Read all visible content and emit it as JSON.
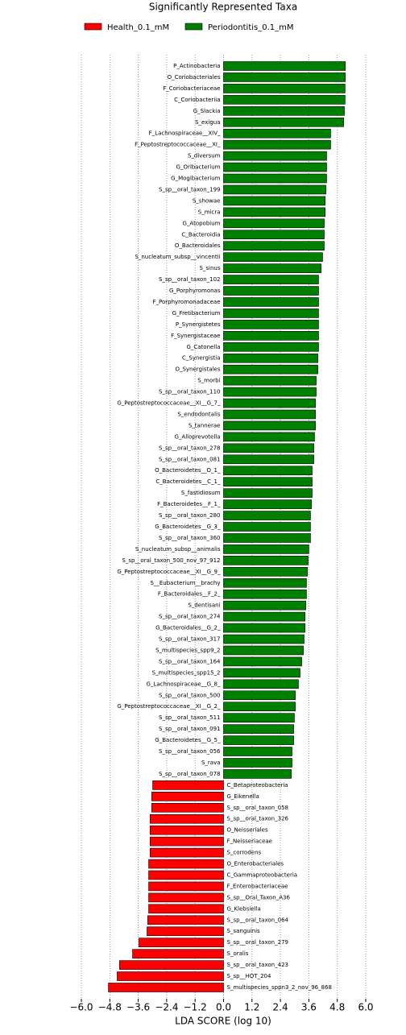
{
  "chart_data": {
    "type": "barh",
    "title": "Significantly Represented Taxa",
    "xlabel": "LDA SCORE (log 10)",
    "categories": [
      "P_Actinobacteria",
      "O_Coriobacteriales",
      "F_Coriobacteriaceae",
      "C_Coriobacteriia",
      "G_Slackia",
      "S_exigua",
      "F_Lachnospiraceae__XIV_",
      "F_Peptostreptococcaceae__XI_",
      "S_diversum",
      "G_Oribacterium",
      "G_Mogibacterium",
      "S_sp__oral_taxon_199",
      "S_showae",
      "S_micra",
      "G_Atopobium",
      "C_Bacteroidia",
      "O_Bacteroidales",
      "S_nucleatum_subsp__vincentii",
      "S_sinus",
      "S_sp__oral_taxon_102",
      "G_Porphyromonas",
      "F_Porphyromonadaceae",
      "G_Fretibacterium",
      "P_Synergistetes",
      "F_Synergistaceae",
      "G_Catonella",
      "C_Synergistia",
      "O_Synergistales",
      "S_morbi",
      "S_sp__oral_taxon_110",
      "G_Peptostreptococcaceae__XI__G_7_",
      "S_endodontalis",
      "S_tannerae",
      "G_Alloprevotella",
      "S_sp__oral_taxon_278",
      "S_sp__oral_taxon_081",
      "O_Bacteroidetes__O_1_",
      "C_Bacteroidetes__C_1_",
      "S_fastidiosum",
      "F_Bacteroidetes__F_1_",
      "S_sp__oral_taxon_280",
      "G_Bacteroidetes__G_3_",
      "S_sp__oral_taxon_360",
      "S_nucleatum_subsp__animalis",
      "S_sp__oral_taxon_500_nov_97_912",
      "G_Peptostreptococcaceae__XI__G_9_",
      "S__Eubacterium__brachy",
      "F_Bacteroidales__F_2_",
      "S_dentisani",
      "S_sp__oral_taxon_274",
      "G_Bacteroidales__G_2_",
      "S_sp__oral_taxon_317",
      "S_multispecies_spp9_2",
      "S_sp__oral_taxon_164",
      "S_multispecies_spp15_2",
      "G_Lachnospiraceae__G_8_",
      "S_sp__oral_taxon_500",
      "G_Peptostreptococcaceae__XI__G_2_",
      "S_sp__oral_taxon_511",
      "S_sp__oral_taxon_091",
      "G_Bacteroidetes__G_5_",
      "S_sp__oral_taxon_056",
      "S_rava",
      "S_sp__oral_taxon_078",
      "C_Betaproteobacteria",
      "G_Eikenella",
      "S_sp__oral_taxon_058",
      "S_sp__oral_taxon_326",
      "O_Neisseriales",
      "F_Neisseriaceae",
      "S_corrodens",
      "O_Enterobacteriales",
      "C_Gammaproteobacteria",
      "F_Enterobacteriaceae",
      "S_sp__Oral_Taxon_A36",
      "G_Klebsiella",
      "S_sp__oral_taxon_064",
      "S_sanguinis",
      "S_sp__oral_taxon_279",
      "S_oralis",
      "S_sp__oral_taxon_423",
      "S_sp__HOT_204",
      "S_multispecies_sppn3_2_nov_96_868"
    ],
    "series": [
      {
        "name": "Health_0.1_mM",
        "color": "#ff0000",
        "values": [
          null,
          null,
          null,
          null,
          null,
          null,
          null,
          null,
          null,
          null,
          null,
          null,
          null,
          null,
          null,
          null,
          null,
          null,
          null,
          null,
          null,
          null,
          null,
          null,
          null,
          null,
          null,
          null,
          null,
          null,
          null,
          null,
          null,
          null,
          null,
          null,
          null,
          null,
          null,
          null,
          null,
          null,
          null,
          null,
          null,
          null,
          null,
          null,
          null,
          null,
          null,
          null,
          null,
          null,
          null,
          null,
          null,
          null,
          null,
          null,
          null,
          null,
          null,
          null,
          -2.99,
          -3.03,
          -3.03,
          -3.1,
          -3.1,
          -3.1,
          -3.1,
          -3.16,
          -3.16,
          -3.16,
          -3.16,
          -3.16,
          -3.2,
          -3.23,
          -3.57,
          -3.84,
          -4.39,
          -4.49,
          -4.86
        ]
      },
      {
        "name": "Periodontitis_0.1_mM",
        "color": "#008000",
        "values": [
          5.14,
          5.14,
          5.13,
          5.13,
          5.1,
          5.07,
          4.52,
          4.52,
          4.35,
          4.35,
          4.35,
          4.32,
          4.29,
          4.29,
          4.25,
          4.25,
          4.25,
          4.18,
          4.12,
          4.01,
          4.01,
          4.01,
          4.01,
          4.01,
          4.01,
          4.01,
          3.98,
          3.98,
          3.91,
          3.91,
          3.88,
          3.88,
          3.88,
          3.84,
          3.81,
          3.81,
          3.74,
          3.74,
          3.74,
          3.71,
          3.67,
          3.67,
          3.67,
          3.6,
          3.57,
          3.54,
          3.5,
          3.5,
          3.47,
          3.44,
          3.44,
          3.4,
          3.37,
          3.3,
          3.23,
          3.16,
          3.03,
          3.03,
          2.99,
          2.96,
          2.96,
          2.89,
          2.89,
          2.86,
          null,
          null,
          null,
          null,
          null,
          null,
          null,
          null,
          null,
          null,
          null,
          null,
          null,
          null,
          null,
          null,
          null,
          null,
          null
        ]
      }
    ],
    "xlim": [
      -6.0,
      6.0
    ],
    "xticks": [
      {
        "value": -6.0,
        "label": "−6.0"
      },
      {
        "value": -4.8,
        "label": "−4.8"
      },
      {
        "value": -3.6,
        "label": "−3.6"
      },
      {
        "value": -2.4,
        "label": "−2.4"
      },
      {
        "value": -1.2,
        "label": "−1.2"
      },
      {
        "value": 0,
        "label": "0.0"
      },
      {
        "value": 1.2,
        "label": "1.2"
      },
      {
        "value": 2.4,
        "label": "2.4"
      },
      {
        "value": 3.6,
        "label": "3.6"
      },
      {
        "value": 4.8,
        "label": "4.8"
      },
      {
        "value": 6.0,
        "label": "6.0"
      }
    ],
    "grid": true
  }
}
